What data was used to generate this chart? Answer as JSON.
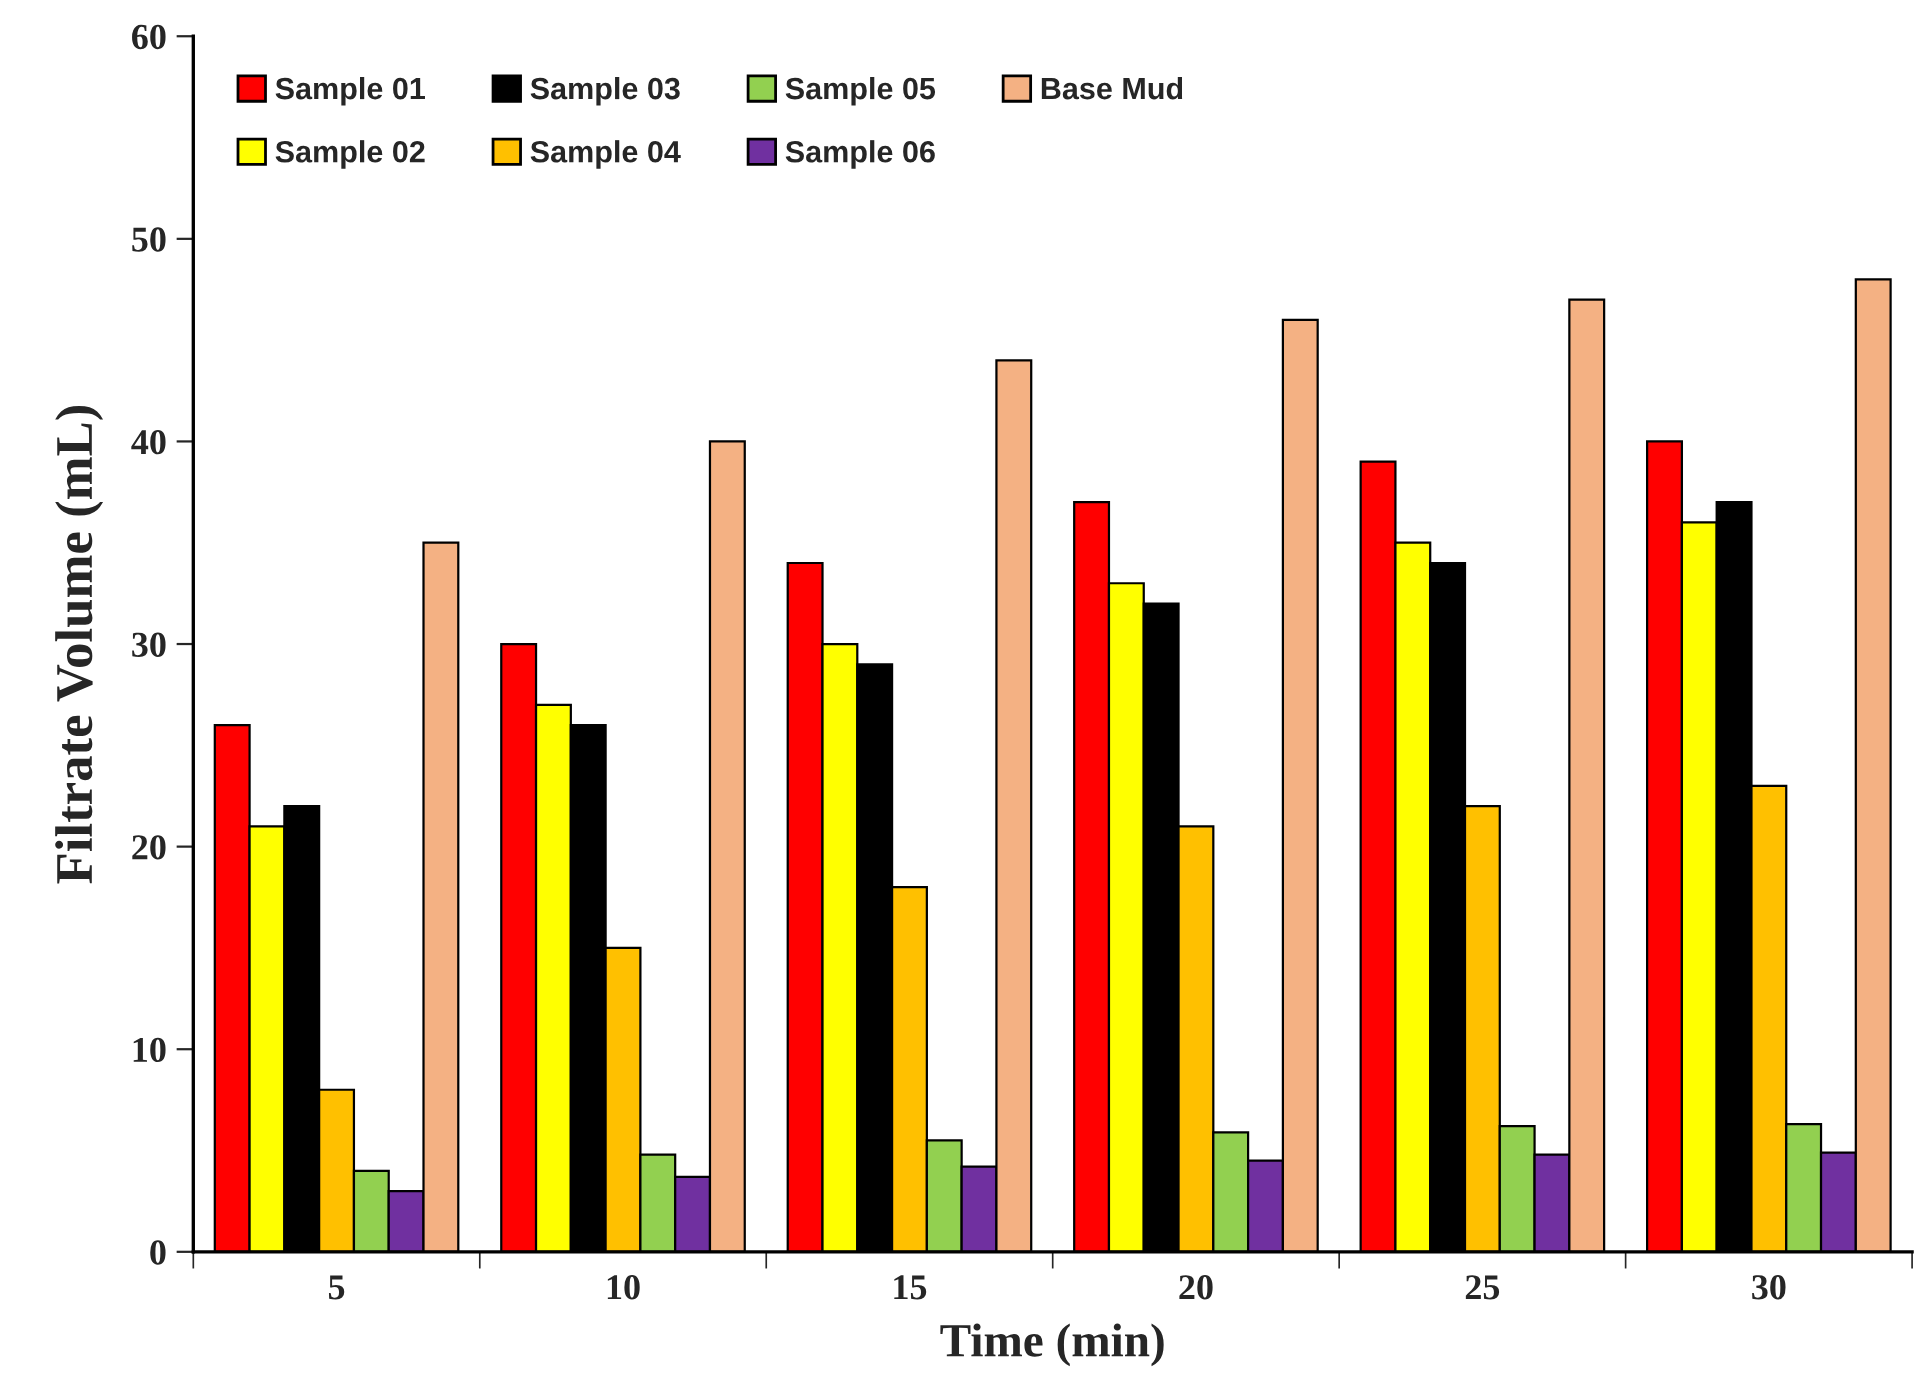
{
  "chart_data": {
    "type": "bar",
    "xlabel": "Time (min)",
    "ylabel": "Filtrate Volume (mL)",
    "categories": [
      "5",
      "10",
      "15",
      "20",
      "25",
      "30"
    ],
    "ylim": [
      0,
      60
    ],
    "yticks": [
      0,
      10,
      20,
      30,
      40,
      50,
      60
    ],
    "legend": "top left",
    "grid": false,
    "series": [
      {
        "name": "Sample 01",
        "color": "#ff0000",
        "values": [
          26,
          30,
          34,
          37,
          39,
          40
        ]
      },
      {
        "name": "Sample 02",
        "color": "#ffff00",
        "values": [
          21,
          27,
          30,
          33,
          35,
          36
        ]
      },
      {
        "name": "Sample 03",
        "color": "#000000",
        "values": [
          22,
          26,
          29,
          32,
          34,
          37
        ]
      },
      {
        "name": "Sample 04",
        "color": "#ffc000",
        "values": [
          8,
          15,
          18,
          21,
          22,
          23
        ]
      },
      {
        "name": "Sample 05",
        "color": "#92d050",
        "values": [
          4,
          4.8,
          5.5,
          5.9,
          6.2,
          6.3
        ]
      },
      {
        "name": "Sample 06",
        "color": "#7030a0",
        "values": [
          3,
          3.7,
          4.2,
          4.5,
          4.8,
          4.9
        ]
      },
      {
        "name": "Base Mud",
        "color": "#f4b183",
        "values": [
          35,
          40,
          44,
          46,
          47,
          48
        ]
      }
    ]
  }
}
